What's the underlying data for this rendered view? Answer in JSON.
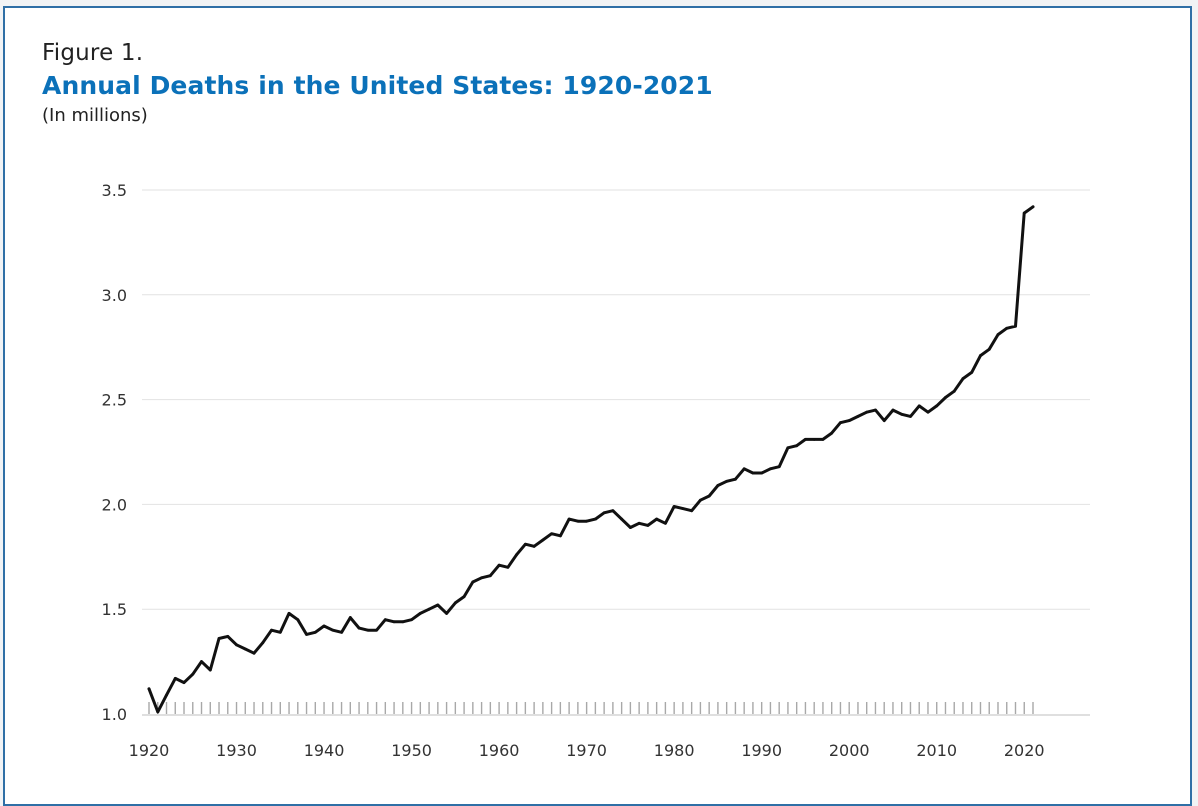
{
  "figure": {
    "label": "Figure 1.",
    "title": "Annual Deaths in the United States: 1920-2021",
    "subtitle": "(In millions)"
  },
  "colors": {
    "title": "#0b71b9",
    "border": "#2f6fa6",
    "line": "#111111",
    "grid": "#e2e2e2"
  },
  "chart_data": {
    "type": "line",
    "title": "Annual Deaths in the United States: 1920-2021",
    "subtitle": "(In millions)",
    "xlabel": "",
    "ylabel": "",
    "xlim": [
      1920,
      2021
    ],
    "ylim": [
      1.0,
      3.5
    ],
    "grid": "horizontal",
    "yticks": [
      "1.0",
      "1.5",
      "2.0",
      "2.5",
      "3.0",
      "3.5"
    ],
    "xticks": [
      "1920",
      "1930",
      "1940",
      "1950",
      "1960",
      "1970",
      "1980",
      "1990",
      "2000",
      "2010",
      "2020"
    ],
    "series": [
      {
        "x": [
          1920,
          1921,
          1922,
          1923,
          1924,
          1925,
          1926,
          1927,
          1928,
          1929,
          1930,
          1931,
          1932,
          1933,
          1934,
          1935,
          1936,
          1937,
          1938,
          1939,
          1940,
          1941,
          1942,
          1943,
          1944,
          1945,
          1946,
          1947,
          1948,
          1949,
          1950,
          1951,
          1952,
          1953,
          1954,
          1955,
          1956,
          1957,
          1958,
          1959,
          1960,
          1961,
          1962,
          1963,
          1964,
          1965,
          1966,
          1967,
          1968,
          1969,
          1970,
          1971,
          1972,
          1973,
          1974,
          1975,
          1976,
          1977,
          1978,
          1979,
          1980,
          1981,
          1982,
          1983,
          1984,
          1985,
          1986,
          1987,
          1988,
          1989,
          1990,
          1991,
          1992,
          1993,
          1994,
          1995,
          1996,
          1997,
          1998,
          1999,
          2000,
          2001,
          2002,
          2003,
          2004,
          2005,
          2006,
          2007,
          2008,
          2009,
          2010,
          2011,
          2012,
          2013,
          2014,
          2015,
          2016,
          2017,
          2018,
          2019,
          2020,
          2021
        ],
        "values": [
          1.12,
          1.01,
          1.09,
          1.17,
          1.15,
          1.19,
          1.25,
          1.21,
          1.36,
          1.37,
          1.33,
          1.31,
          1.29,
          1.34,
          1.4,
          1.39,
          1.48,
          1.45,
          1.38,
          1.39,
          1.42,
          1.4,
          1.39,
          1.46,
          1.41,
          1.4,
          1.4,
          1.45,
          1.44,
          1.44,
          1.45,
          1.48,
          1.5,
          1.52,
          1.48,
          1.53,
          1.56,
          1.63,
          1.65,
          1.66,
          1.71,
          1.7,
          1.76,
          1.81,
          1.8,
          1.83,
          1.86,
          1.85,
          1.93,
          1.92,
          1.92,
          1.93,
          1.96,
          1.97,
          1.93,
          1.89,
          1.91,
          1.9,
          1.93,
          1.91,
          1.99,
          1.98,
          1.97,
          2.02,
          2.04,
          2.09,
          2.11,
          2.12,
          2.17,
          2.15,
          2.15,
          2.17,
          2.18,
          2.27,
          2.28,
          2.31,
          2.31,
          2.31,
          2.34,
          2.39,
          2.4,
          2.42,
          2.44,
          2.45,
          2.4,
          2.45,
          2.43,
          2.42,
          2.47,
          2.44,
          2.47,
          2.51,
          2.54,
          2.6,
          2.63,
          2.71,
          2.74,
          2.81,
          2.84,
          2.85,
          3.39,
          3.42
        ]
      }
    ]
  }
}
